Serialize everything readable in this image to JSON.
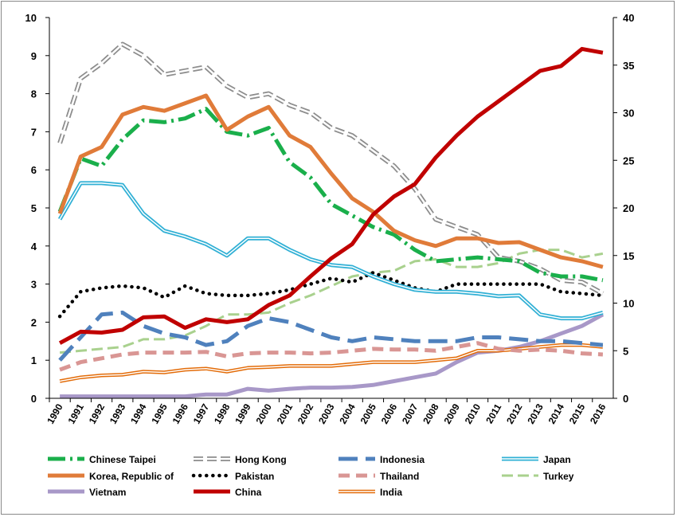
{
  "chart_data": {
    "type": "line",
    "title": "",
    "xlabel": "",
    "ylabel": "",
    "ylim": [
      0,
      10
    ],
    "y2lim": [
      0,
      40
    ],
    "y_ticks": [
      0,
      1,
      2,
      3,
      4,
      5,
      6,
      7,
      8,
      9,
      10
    ],
    "y2_ticks": [
      0,
      5,
      10,
      15,
      20,
      25,
      30,
      35,
      40
    ],
    "x": [
      1990,
      1991,
      1992,
      1993,
      1994,
      1995,
      1996,
      1997,
      1998,
      1999,
      2000,
      2001,
      2002,
      2003,
      2004,
      2005,
      2006,
      2007,
      2008,
      2009,
      2010,
      2011,
      2012,
      2013,
      2014,
      2015,
      2016
    ],
    "legend_position": "bottom",
    "series": [
      {
        "name": "Chinese Taipei",
        "axis": "left",
        "style": "dashdot-green",
        "color": "#1aaf4b",
        "values": [
          4.9,
          6.3,
          6.1,
          6.8,
          7.3,
          7.25,
          7.35,
          7.6,
          7.0,
          6.9,
          7.1,
          6.2,
          5.8,
          5.1,
          4.8,
          4.5,
          4.3,
          3.9,
          3.6,
          3.65,
          3.7,
          3.65,
          3.6,
          3.3,
          3.2,
          3.2,
          3.1
        ]
      },
      {
        "name": "Hong Kong",
        "axis": "left",
        "style": "double-gray-dashed",
        "color": "#8c8c8c",
        "values": [
          6.7,
          8.4,
          8.8,
          9.3,
          9.0,
          8.5,
          8.6,
          8.7,
          8.2,
          7.9,
          8.0,
          7.7,
          7.5,
          7.1,
          6.9,
          6.5,
          6.1,
          5.5,
          4.7,
          4.5,
          4.3,
          3.7,
          3.6,
          3.4,
          3.1,
          3.05,
          2.75
        ]
      },
      {
        "name": "Indonesia",
        "axis": "left",
        "style": "long-dash-blue",
        "color": "#4f81bd",
        "values": [
          1.0,
          1.6,
          2.2,
          2.25,
          1.9,
          1.7,
          1.6,
          1.4,
          1.5,
          1.9,
          2.1,
          2.0,
          1.8,
          1.6,
          1.5,
          1.6,
          1.55,
          1.5,
          1.5,
          1.5,
          1.6,
          1.6,
          1.55,
          1.5,
          1.5,
          1.45,
          1.4
        ]
      },
      {
        "name": "Japan",
        "axis": "left",
        "style": "double-lightblue",
        "color": "#31b0d5",
        "values": [
          4.7,
          5.65,
          5.65,
          5.6,
          4.85,
          4.4,
          4.25,
          4.05,
          3.75,
          4.2,
          4.2,
          3.9,
          3.65,
          3.5,
          3.45,
          3.2,
          3.0,
          2.85,
          2.8,
          2.8,
          2.75,
          2.68,
          2.7,
          2.2,
          2.1,
          2.1,
          2.25
        ]
      },
      {
        "name": "Korea, Republic of",
        "axis": "left",
        "style": "solid-orange",
        "color": "#e07b39",
        "values": [
          4.85,
          6.35,
          6.6,
          7.45,
          7.65,
          7.55,
          7.75,
          7.95,
          7.05,
          7.4,
          7.65,
          6.9,
          6.6,
          5.9,
          5.25,
          4.9,
          4.4,
          4.15,
          4.0,
          4.2,
          4.2,
          4.08,
          4.1,
          3.9,
          3.7,
          3.6,
          3.45
        ]
      },
      {
        "name": "Pakistan",
        "axis": "left",
        "style": "dotted-black",
        "color": "#000000",
        "values": [
          2.15,
          2.8,
          2.9,
          2.95,
          2.9,
          2.65,
          2.95,
          2.75,
          2.7,
          2.7,
          2.75,
          2.85,
          3.0,
          3.15,
          3.05,
          3.3,
          3.1,
          2.9,
          2.8,
          3.0,
          3.0,
          3.0,
          3.0,
          3.0,
          2.8,
          2.75,
          2.7
        ]
      },
      {
        "name": "Thailand",
        "axis": "left",
        "style": "dash-pink",
        "color": "#d99694",
        "values": [
          0.75,
          0.95,
          1.05,
          1.15,
          1.2,
          1.2,
          1.2,
          1.22,
          1.1,
          1.18,
          1.2,
          1.2,
          1.18,
          1.2,
          1.25,
          1.3,
          1.28,
          1.28,
          1.25,
          1.35,
          1.45,
          1.3,
          1.25,
          1.28,
          1.25,
          1.18,
          1.15
        ]
      },
      {
        "name": "Turkey",
        "axis": "left",
        "style": "dash-lightgreen",
        "color": "#a9d18e",
        "values": [
          1.2,
          1.25,
          1.3,
          1.35,
          1.55,
          1.55,
          1.65,
          1.9,
          2.2,
          2.2,
          2.25,
          2.5,
          2.7,
          2.95,
          3.2,
          3.3,
          3.35,
          3.6,
          3.65,
          3.45,
          3.45,
          3.55,
          3.8,
          3.9,
          3.9,
          3.7,
          3.8
        ]
      },
      {
        "name": "Vietnam",
        "axis": "left",
        "style": "solid-lavender",
        "color": "#a898c8",
        "values": [
          0.05,
          0.05,
          0.05,
          0.05,
          0.05,
          0.05,
          0.05,
          0.1,
          0.1,
          0.25,
          0.2,
          0.25,
          0.28,
          0.28,
          0.3,
          0.35,
          0.45,
          0.55,
          0.65,
          0.95,
          1.2,
          1.25,
          1.35,
          1.5,
          1.7,
          1.9,
          2.2
        ]
      },
      {
        "name": "China",
        "axis": "right",
        "style": "solid-darkred",
        "color": "#c00000",
        "values": [
          5.8,
          7.0,
          6.9,
          7.2,
          8.5,
          8.6,
          7.4,
          8.3,
          8.0,
          8.3,
          9.8,
          10.8,
          12.8,
          14.7,
          16.2,
          19.3,
          21.2,
          22.5,
          25.3,
          27.6,
          29.6,
          31.2,
          32.8,
          34.4,
          34.9,
          36.7,
          36.3
        ]
      },
      {
        "name": "India",
        "axis": "left",
        "style": "double-orange",
        "color": "#e36c09",
        "values": [
          0.45,
          0.55,
          0.6,
          0.62,
          0.7,
          0.68,
          0.75,
          0.78,
          0.7,
          0.8,
          0.82,
          0.85,
          0.85,
          0.85,
          0.9,
          0.95,
          0.95,
          0.95,
          1.0,
          1.05,
          1.25,
          1.25,
          1.3,
          1.35,
          1.4,
          1.4,
          1.35
        ]
      }
    ]
  }
}
